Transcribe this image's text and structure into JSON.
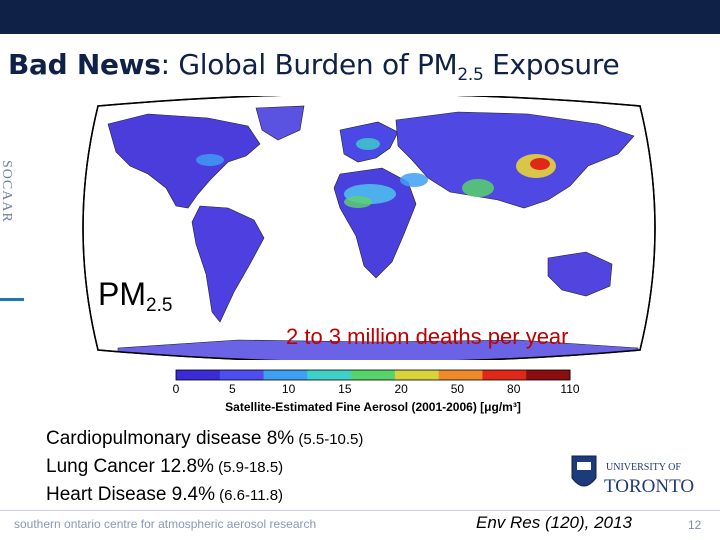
{
  "slide": {
    "title_bold": "Bad News",
    "title_rest": ":  Global Burden of PM",
    "title_sub": "2.5",
    "title_tail": " Exposure",
    "side_logo": "SOCAAR",
    "page_number": "12"
  },
  "map": {
    "pm_label": "PM",
    "pm_label_sub": "2.5",
    "deaths_text": "2 to 3 million deaths per year",
    "colorbar_ticks": [
      "0",
      "5",
      "10",
      "15",
      "20",
      "50",
      "80",
      "110"
    ],
    "colorbar_colors": [
      "#3b2bd6",
      "#4d4df0",
      "#3ea0f5",
      "#3fd1c8",
      "#57d36b",
      "#d8d33a",
      "#ef8a2a",
      "#e02818",
      "#8a0e0e"
    ],
    "colorbar_label": "Satellite-Estimated Fine Aerosol (2001-2006) [μg/m³]"
  },
  "stats": [
    {
      "label": "Cardiopulmonary disease 8%",
      "range": " (5.5-10.5)"
    },
    {
      "label": "Lung Cancer 12.8%",
      "range": " (5.9-18.5)"
    },
    {
      "label": "Heart Disease 9.4%",
      "range": " (6.6-11.8)"
    }
  ],
  "logo": {
    "line1": "UNIVERSITY OF",
    "line2": "TORONTO"
  },
  "footer": {
    "text": "southern ontario centre for atmospheric aerosol research",
    "citation": "Env Res (120),  2013"
  }
}
